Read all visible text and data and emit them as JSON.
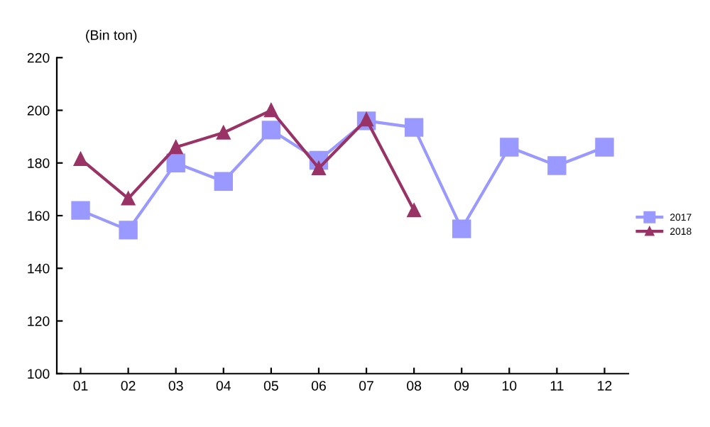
{
  "chart_data": {
    "type": "line",
    "ylabel": "(Bin ton)",
    "categories": [
      "01",
      "02",
      "03",
      "04",
      "05",
      "06",
      "07",
      "08",
      "09",
      "10",
      "11",
      "12"
    ],
    "series": [
      {
        "name": "2017",
        "color": "#9999ff",
        "marker": "square",
        "values": [
          162,
          154.5,
          180,
          173,
          192.5,
          181,
          196,
          193.5,
          155,
          186,
          179,
          186
        ]
      },
      {
        "name": "2018",
        "color": "#993366",
        "marker": "triangle",
        "values": [
          181.5,
          166.5,
          186,
          191.5,
          200,
          178,
          196.5,
          162,
          null,
          null,
          null,
          null
        ]
      }
    ],
    "ylim": [
      100,
      220
    ],
    "yticks": [
      100,
      120,
      140,
      160,
      180,
      200,
      220
    ],
    "grid": false,
    "legend": "right",
    "line_style": "solid"
  }
}
